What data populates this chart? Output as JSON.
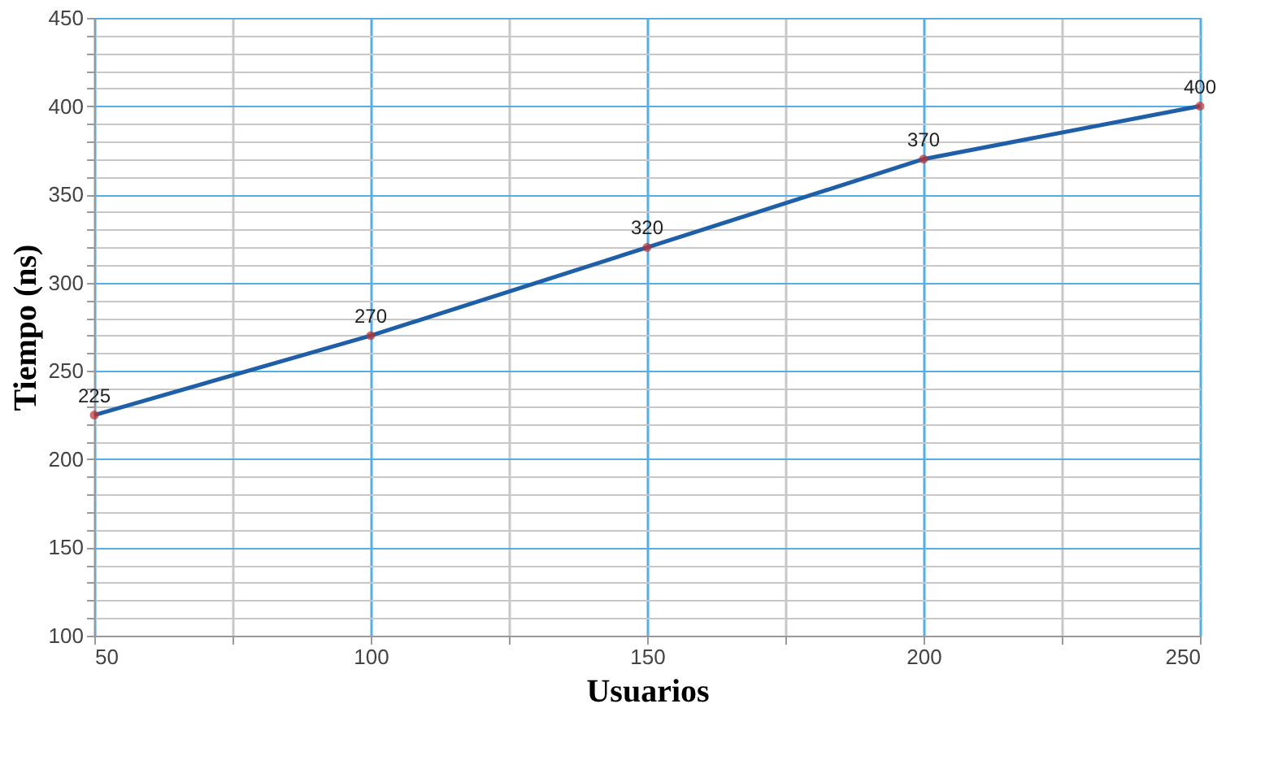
{
  "chart_data": {
    "type": "line",
    "xlabel": "Usuarios",
    "ylabel": "Tiempo (ns)",
    "x": [
      50,
      100,
      150,
      200,
      250
    ],
    "series": [
      {
        "color": "#1f5fa8",
        "values": [
          225,
          270,
          320,
          370,
          400
        ]
      }
    ],
    "xlim": [
      50,
      250
    ],
    "xticks": [
      50,
      {
        "value": 75,
        "label": null
      },
      100,
      {
        "value": 125,
        "label": null
      },
      150,
      {
        "value": 175,
        "label": null
      },
      200,
      {
        "value": 225,
        "label": null
      },
      250
    ],
    "ylim": [
      100,
      450
    ],
    "yticks": [
      100,
      {
        "value": 110,
        "label": null
      },
      {
        "value": 120,
        "label": null
      },
      {
        "value": 130,
        "label": null
      },
      {
        "value": 140,
        "label": null
      },
      150,
      {
        "value": 160,
        "label": null
      },
      {
        "value": 170,
        "label": null
      },
      {
        "value": 180,
        "label": null
      },
      {
        "value": 190,
        "label": null
      },
      200,
      {
        "value": 210,
        "label": null
      },
      {
        "value": 220,
        "label": null
      },
      {
        "value": 230,
        "label": null
      },
      {
        "value": 240,
        "label": null
      },
      250,
      {
        "value": 260,
        "label": null
      },
      {
        "value": 270,
        "label": null
      },
      {
        "value": 280,
        "label": null
      },
      {
        "value": 290,
        "label": null
      },
      300,
      {
        "value": 310,
        "label": null
      },
      {
        "value": 320,
        "label": null
      },
      {
        "value": 330,
        "label": null
      },
      {
        "value": 340,
        "label": null
      },
      350,
      {
        "value": 360,
        "label": null
      },
      {
        "value": 370,
        "label": null
      },
      {
        "value": 380,
        "label": null
      },
      {
        "value": 390,
        "label": null
      },
      400,
      {
        "value": 410,
        "label": null
      },
      {
        "value": 420,
        "label": null
      },
      {
        "value": 430,
        "label": null
      },
      {
        "value": 440,
        "label": null
      },
      450
    ],
    "grid": true,
    "marker": "circle",
    "data_labels": true,
    "line_style": "solid"
  }
}
